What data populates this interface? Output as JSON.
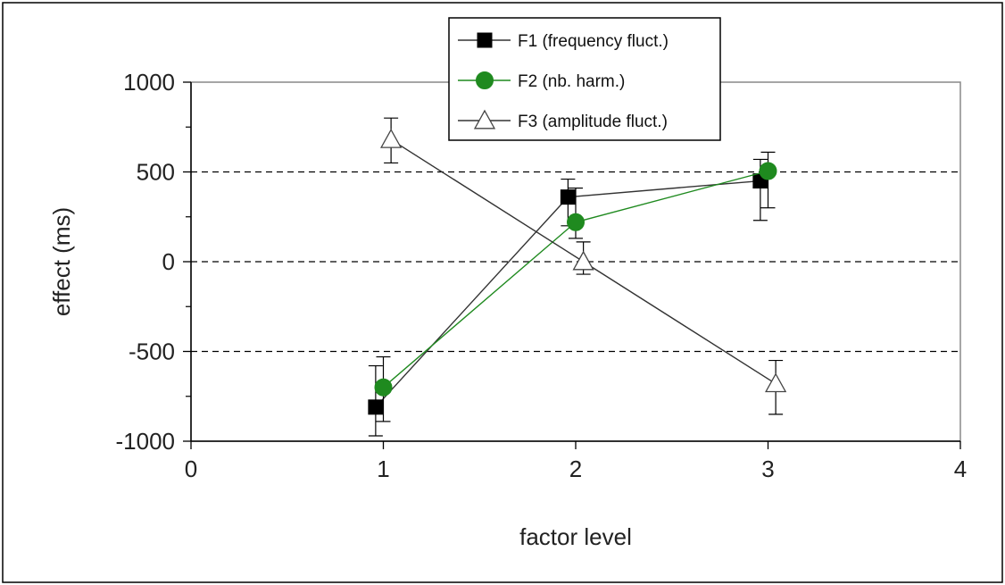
{
  "chart_data": {
    "type": "line",
    "xlabel": "factor level",
    "ylabel": "effect (ms)",
    "xlim": [
      0,
      4
    ],
    "ylim": [
      -1000,
      1000
    ],
    "x_ticks": [
      "0",
      "1",
      "2",
      "3",
      "4"
    ],
    "y_ticks": [
      "-1000",
      "-500",
      "0",
      "500",
      "1000"
    ],
    "dashed_gridlines_y": [
      -500,
      0,
      500
    ],
    "legend_position": "top",
    "series": [
      {
        "name": "F1 (frequency fluct.)",
        "marker": "square",
        "color": "#000000",
        "x": [
          0.96,
          1.96,
          2.96
        ],
        "y": [
          -810,
          360,
          450
        ],
        "err_low": [
          -970,
          200,
          230
        ],
        "err_high": [
          -580,
          460,
          570
        ]
      },
      {
        "name": "F2 (nb. harm.)",
        "marker": "circle",
        "color": "#1f8a1f",
        "x": [
          1.0,
          2.0,
          3.0
        ],
        "y": [
          -700,
          220,
          505
        ],
        "err_low": [
          -890,
          130,
          300
        ],
        "err_high": [
          -530,
          410,
          610
        ]
      },
      {
        "name": "F3 (amplitude fluct.)",
        "marker": "triangle",
        "color": "#000000",
        "x": [
          1.04,
          2.04,
          3.04
        ],
        "y": [
          680,
          0,
          -680
        ],
        "err_low": [
          550,
          -70,
          -850
        ],
        "err_high": [
          800,
          110,
          -550
        ]
      }
    ]
  }
}
